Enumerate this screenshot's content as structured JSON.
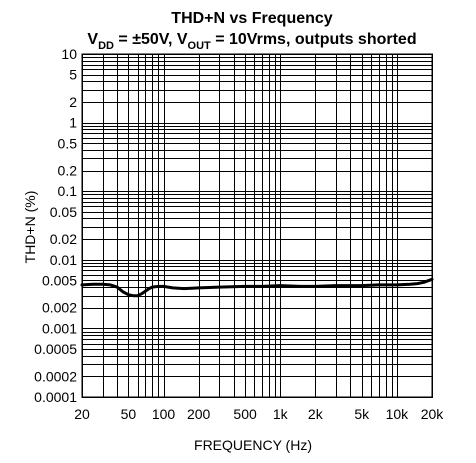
{
  "chart_data": {
    "type": "line",
    "title": "THD+N vs Frequency",
    "subtitle": {
      "v": "V",
      "dd": "DD",
      "eq1": " = ±50V, ",
      "v2": "V",
      "out": "OUT",
      "eq2": " = 10Vrms, outputs shorted"
    },
    "xlabel": "FREQUENCY (Hz)",
    "ylabel": "THD+N (%)",
    "x_scale": "log",
    "y_scale": "log",
    "xlim": [
      20,
      20000
    ],
    "ylim": [
      0.0001,
      10
    ],
    "grid": true,
    "x_ticks": [
      "20",
      "50",
      "100",
      "200",
      "500",
      "1k",
      "2k",
      "5k",
      "10k",
      "20k"
    ],
    "x_tick_values": [
      20,
      50,
      100,
      200,
      500,
      1000,
      2000,
      5000,
      10000,
      20000
    ],
    "y_ticks": [
      "10",
      "5",
      "2",
      "1",
      "0.5",
      "0.2",
      "0.1",
      "0.05",
      "0.02",
      "0.01",
      "0.005",
      "0.002",
      "0.001",
      "0.0005",
      "0.0002",
      "0.0001"
    ],
    "y_tick_values": [
      10,
      5,
      2,
      1,
      0.5,
      0.2,
      0.1,
      0.05,
      0.02,
      0.01,
      0.005,
      0.002,
      0.001,
      0.0005,
      0.0002,
      0.0001
    ],
    "series": [
      {
        "x": [
          20,
          25,
          30,
          35,
          40,
          45,
          50,
          55,
          60,
          65,
          70,
          75,
          80,
          90,
          100,
          120,
          150,
          200,
          300,
          500,
          700,
          1000,
          1500,
          2000,
          3000,
          5000,
          7000,
          10000,
          13000,
          15000,
          17000,
          20000
        ],
        "y": [
          0.0043,
          0.0044,
          0.0044,
          0.0043,
          0.004,
          0.0034,
          0.0031,
          0.003,
          0.003,
          0.0032,
          0.0035,
          0.0038,
          0.004,
          0.0041,
          0.0041,
          0.0039,
          0.0038,
          0.0039,
          0.004,
          0.0041,
          0.0041,
          0.0042,
          0.0041,
          0.0041,
          0.0042,
          0.0042,
          0.0043,
          0.0043,
          0.0044,
          0.0045,
          0.0047,
          0.0052
        ]
      }
    ]
  }
}
